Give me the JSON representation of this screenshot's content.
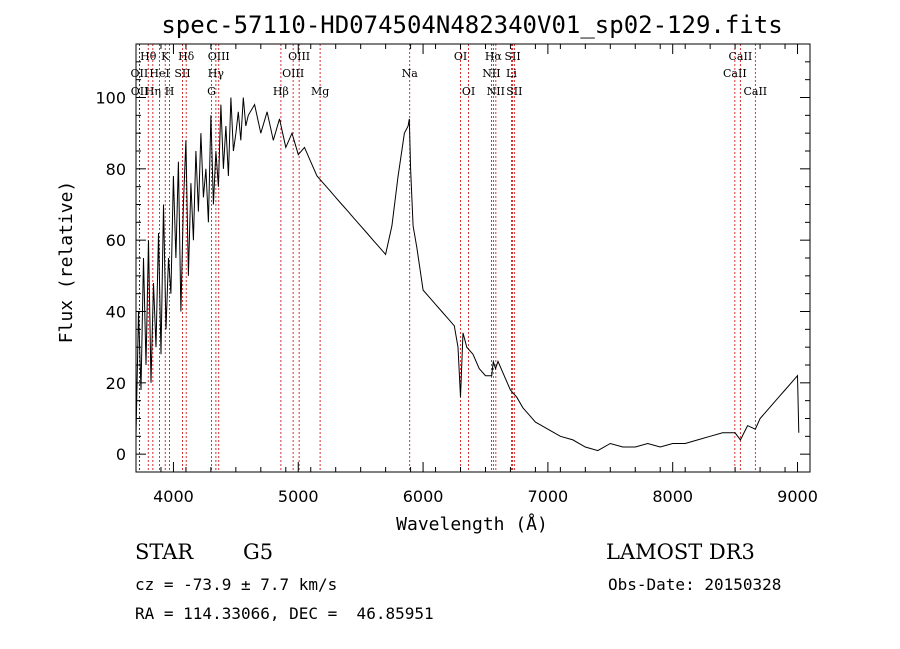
{
  "chart_data": {
    "type": "line",
    "title": "spec-57110-HD074504N482340V01_sp02-129.fits",
    "xlabel": "Wavelength (Å)",
    "ylabel": "Flux (relative)",
    "xlim": [
      3700,
      9100
    ],
    "ylim": [
      -5,
      115
    ],
    "xticks": [
      4000,
      5000,
      6000,
      7000,
      8000,
      9000
    ],
    "yticks": [
      0,
      20,
      40,
      60,
      80,
      100
    ],
    "grid": false,
    "series": [
      {
        "x": [
          3700,
          3720,
          3740,
          3760,
          3780,
          3800,
          3820,
          3840,
          3860,
          3880,
          3900,
          3920,
          3940,
          3960,
          3980,
          4000,
          4020,
          4040,
          4060,
          4080,
          4100,
          4120,
          4140,
          4160,
          4180,
          4200,
          4220,
          4240,
          4260,
          4280,
          4300,
          4320,
          4340,
          4360,
          4380,
          4400,
          4420,
          4440,
          4460,
          4480,
          4500,
          4520,
          4540,
          4560,
          4580,
          4600,
          4650,
          4700,
          4750,
          4800,
          4850,
          4900,
          4950,
          5000,
          5050,
          5100,
          5150,
          5200,
          5250,
          5300,
          5350,
          5400,
          5450,
          5500,
          5550,
          5600,
          5650,
          5700,
          5750,
          5800,
          5850,
          5880,
          5890,
          5900,
          5920,
          5950,
          6000,
          6050,
          6100,
          6150,
          6200,
          6250,
          6280,
          6300,
          6320,
          6350,
          6400,
          6450,
          6500,
          6550,
          6563,
          6580,
          6600,
          6650,
          6700,
          6750,
          6800,
          6850,
          6900,
          6950,
          7000,
          7100,
          7200,
          7300,
          7400,
          7500,
          7600,
          7700,
          7800,
          7900,
          8000,
          8100,
          8200,
          8300,
          8400,
          8500,
          8542,
          8600,
          8662,
          8700,
          8750,
          8800,
          8850,
          8900,
          8950,
          9000,
          9010
        ],
        "y": [
          5,
          40,
          18,
          55,
          25,
          60,
          20,
          48,
          30,
          62,
          28,
          70,
          35,
          55,
          45,
          78,
          55,
          82,
          40,
          70,
          88,
          50,
          76,
          60,
          85,
          68,
          90,
          72,
          80,
          65,
          95,
          70,
          85,
          75,
          98,
          80,
          92,
          78,
          100,
          85,
          90,
          96,
          88,
          100,
          92,
          95,
          98,
          90,
          96,
          88,
          94,
          86,
          90,
          84,
          86,
          82,
          78,
          76,
          74,
          72,
          70,
          68,
          66,
          64,
          62,
          60,
          58,
          56,
          64,
          78,
          90,
          92,
          94,
          80,
          64,
          58,
          46,
          44,
          42,
          40,
          38,
          36,
          30,
          16,
          34,
          30,
          28,
          24,
          22,
          22,
          26,
          24,
          26,
          22,
          18,
          16,
          13,
          11,
          9,
          8,
          7,
          5,
          4,
          2,
          1,
          3,
          2,
          2,
          3,
          2,
          3,
          3,
          4,
          5,
          6,
          6,
          4,
          8,
          7,
          10,
          12,
          14,
          16,
          18,
          20,
          22,
          6
        ]
      }
    ],
    "annotations": [
      {
        "label": "Hθ",
        "x": 3798,
        "row": 0
      },
      {
        "label": "K",
        "x": 3934,
        "row": 0
      },
      {
        "label": "Hδ",
        "x": 4102,
        "row": 0
      },
      {
        "label": "OIII",
        "x": 4363,
        "row": 0
      },
      {
        "label": "OIII",
        "x": 5007,
        "row": 0
      },
      {
        "label": "OI",
        "x": 6300,
        "row": 0
      },
      {
        "label": "Hα",
        "x": 6563,
        "row": 0
      },
      {
        "label": "SII",
        "x": 6717,
        "row": 0
      },
      {
        "label": "CaII",
        "x": 8542,
        "row": 0
      },
      {
        "label": "OII",
        "x": 3727,
        "row": 1
      },
      {
        "label": "HeI",
        "x": 3889,
        "row": 1
      },
      {
        "label": "SII",
        "x": 4072,
        "row": 1
      },
      {
        "label": "Hγ",
        "x": 4340,
        "row": 1
      },
      {
        "label": "OIII",
        "x": 4959,
        "row": 1
      },
      {
        "label": "Na",
        "x": 5893,
        "row": 1
      },
      {
        "label": "NII",
        "x": 6548,
        "row": 1
      },
      {
        "label": "Li",
        "x": 6708,
        "row": 1
      },
      {
        "label": "CaII",
        "x": 8498,
        "row": 1
      },
      {
        "label": "OII",
        "x": 3729,
        "row": 2
      },
      {
        "label": "Hη",
        "x": 3835,
        "row": 2
      },
      {
        "label": "H",
        "x": 3969,
        "row": 2
      },
      {
        "label": "G",
        "x": 4305,
        "row": 2
      },
      {
        "label": "Hβ",
        "x": 4861,
        "row": 2
      },
      {
        "label": "Mg",
        "x": 5175,
        "row": 2
      },
      {
        "label": "OI",
        "x": 6364,
        "row": 2
      },
      {
        "label": "NII",
        "x": 6583,
        "row": 2
      },
      {
        "label": "SII",
        "x": 6731,
        "row": 2
      },
      {
        "label": "CaII",
        "x": 8662,
        "row": 2
      }
    ],
    "line_color": "#cc0000"
  },
  "info": {
    "object_class": "STAR",
    "subclass": "G5",
    "survey": "LAMOST DR3",
    "cz": "cz = -73.9 ± 7.7 km/s",
    "obs_date": "Obs-Date: 20150328",
    "coords": "RA = 114.33066, DEC =  46.85951"
  }
}
